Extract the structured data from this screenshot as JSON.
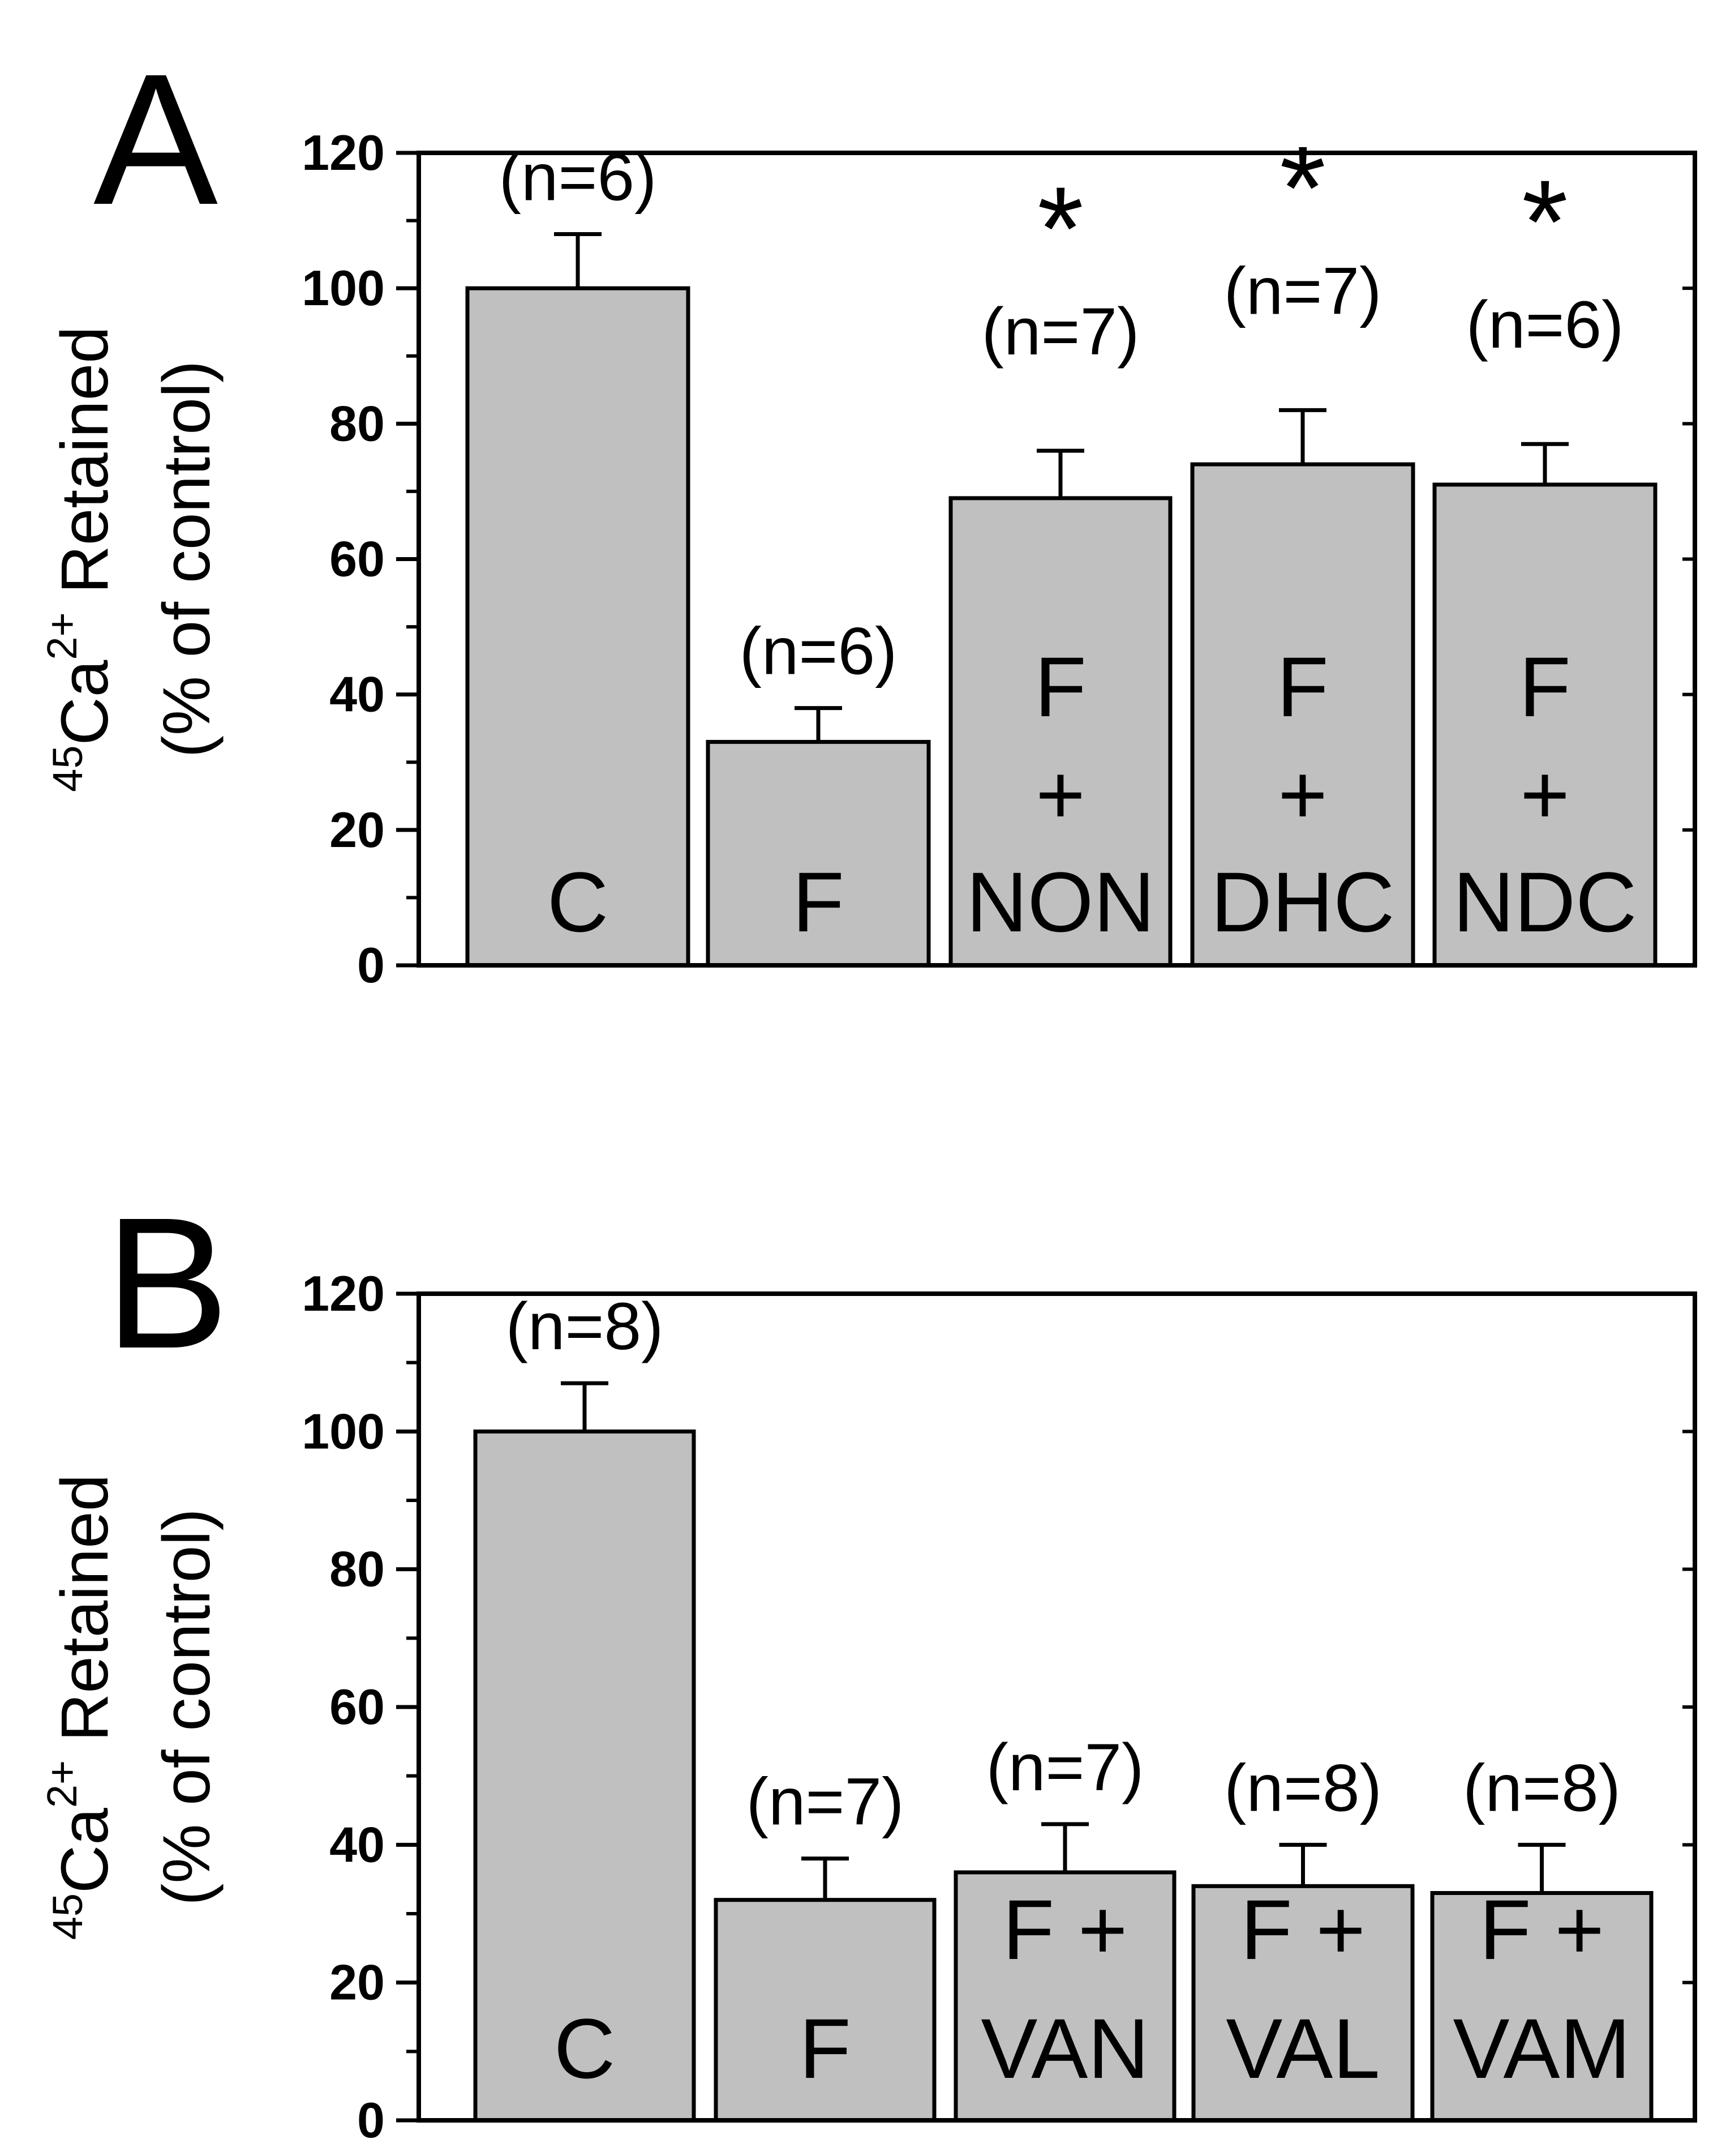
{
  "chart_data": [
    {
      "type": "bar",
      "panel": "A",
      "ylabel_line1": {
        "sup1": "45",
        "main": "Ca",
        "sup2": "2+",
        "rest": " Retained"
      },
      "ylabel_line2": "(% of control)",
      "ylim": [
        0,
        120
      ],
      "yticks": [
        0,
        20,
        40,
        60,
        80,
        100,
        120
      ],
      "tick_labels": [
        "0",
        "20",
        "40",
        "60",
        "80",
        "100",
        "120"
      ],
      "bars": [
        {
          "label_lines": [
            "C"
          ],
          "value": 100,
          "error": 8,
          "n": "(n=6)",
          "sig": ""
        },
        {
          "label_lines": [
            "F"
          ],
          "value": 33,
          "error": 5,
          "n": "(n=6)",
          "sig": ""
        },
        {
          "label_lines": [
            "F",
            "+",
            "NON"
          ],
          "value": 69,
          "error": 7,
          "n": "(n=7)",
          "sig": "*"
        },
        {
          "label_lines": [
            "F",
            "+",
            "DHC"
          ],
          "value": 74,
          "error": 8,
          "n": "(n=7)",
          "sig": "*"
        },
        {
          "label_lines": [
            "F",
            "+",
            "NDC"
          ],
          "value": 71,
          "error": 6,
          "n": "(n=6)",
          "sig": "*"
        }
      ],
      "bar_color": "#c0c0c0"
    },
    {
      "type": "bar",
      "panel": "B",
      "ylabel_line1": {
        "sup1": "45",
        "main": "Ca",
        "sup2": "2+",
        "rest": " Retained"
      },
      "ylabel_line2": "(% of control)",
      "ylim": [
        0,
        120
      ],
      "yticks": [
        0,
        20,
        40,
        60,
        80,
        100,
        120
      ],
      "tick_labels": [
        "0",
        "20",
        "40",
        "60",
        "80",
        "100",
        "120"
      ],
      "bars": [
        {
          "label_lines": [
            "C"
          ],
          "value": 100,
          "error": 7,
          "n": "(n=8)",
          "sig": ""
        },
        {
          "label_lines": [
            "F"
          ],
          "value": 32,
          "error": 6,
          "n": "(n=7)",
          "sig": ""
        },
        {
          "label_lines": [
            "F +",
            "VAN"
          ],
          "value": 36,
          "error": 7,
          "n": "(n=7)",
          "sig": ""
        },
        {
          "label_lines": [
            "F +",
            "VAL"
          ],
          "value": 34,
          "error": 6,
          "n": "(n=8)",
          "sig": ""
        },
        {
          "label_lines": [
            "F +",
            "VAM"
          ],
          "value": 33,
          "error": 7,
          "n": "(n=8)",
          "sig": ""
        }
      ],
      "bar_color": "#c0c0c0"
    }
  ]
}
